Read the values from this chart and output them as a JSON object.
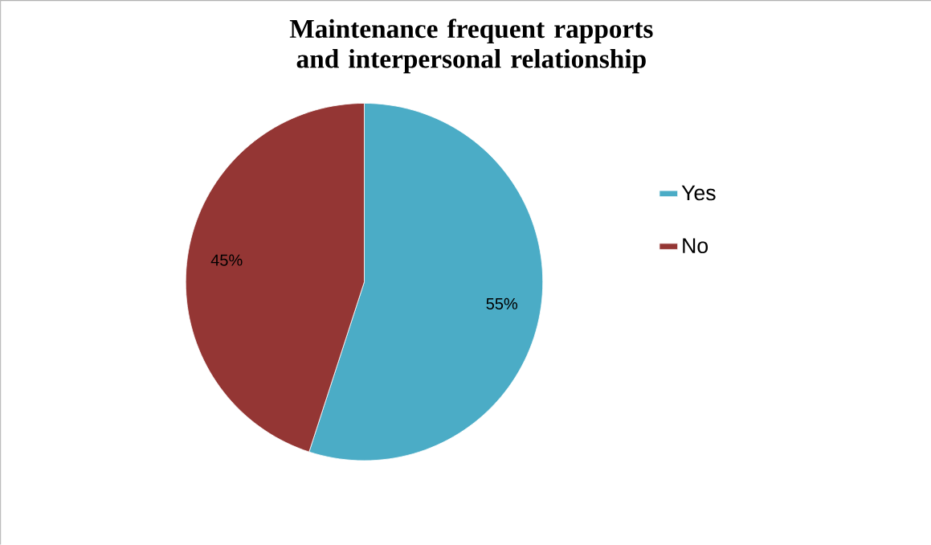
{
  "chart_data": {
    "type": "pie",
    "title": "Maintenance frequent rapports and interpersonal relationship",
    "categories": [
      "Yes",
      "No"
    ],
    "values": [
      55,
      45
    ],
    "colors": [
      "#4bacc6",
      "#943634"
    ],
    "value_labels": [
      "55%",
      "45%"
    ],
    "legend": "right"
  }
}
